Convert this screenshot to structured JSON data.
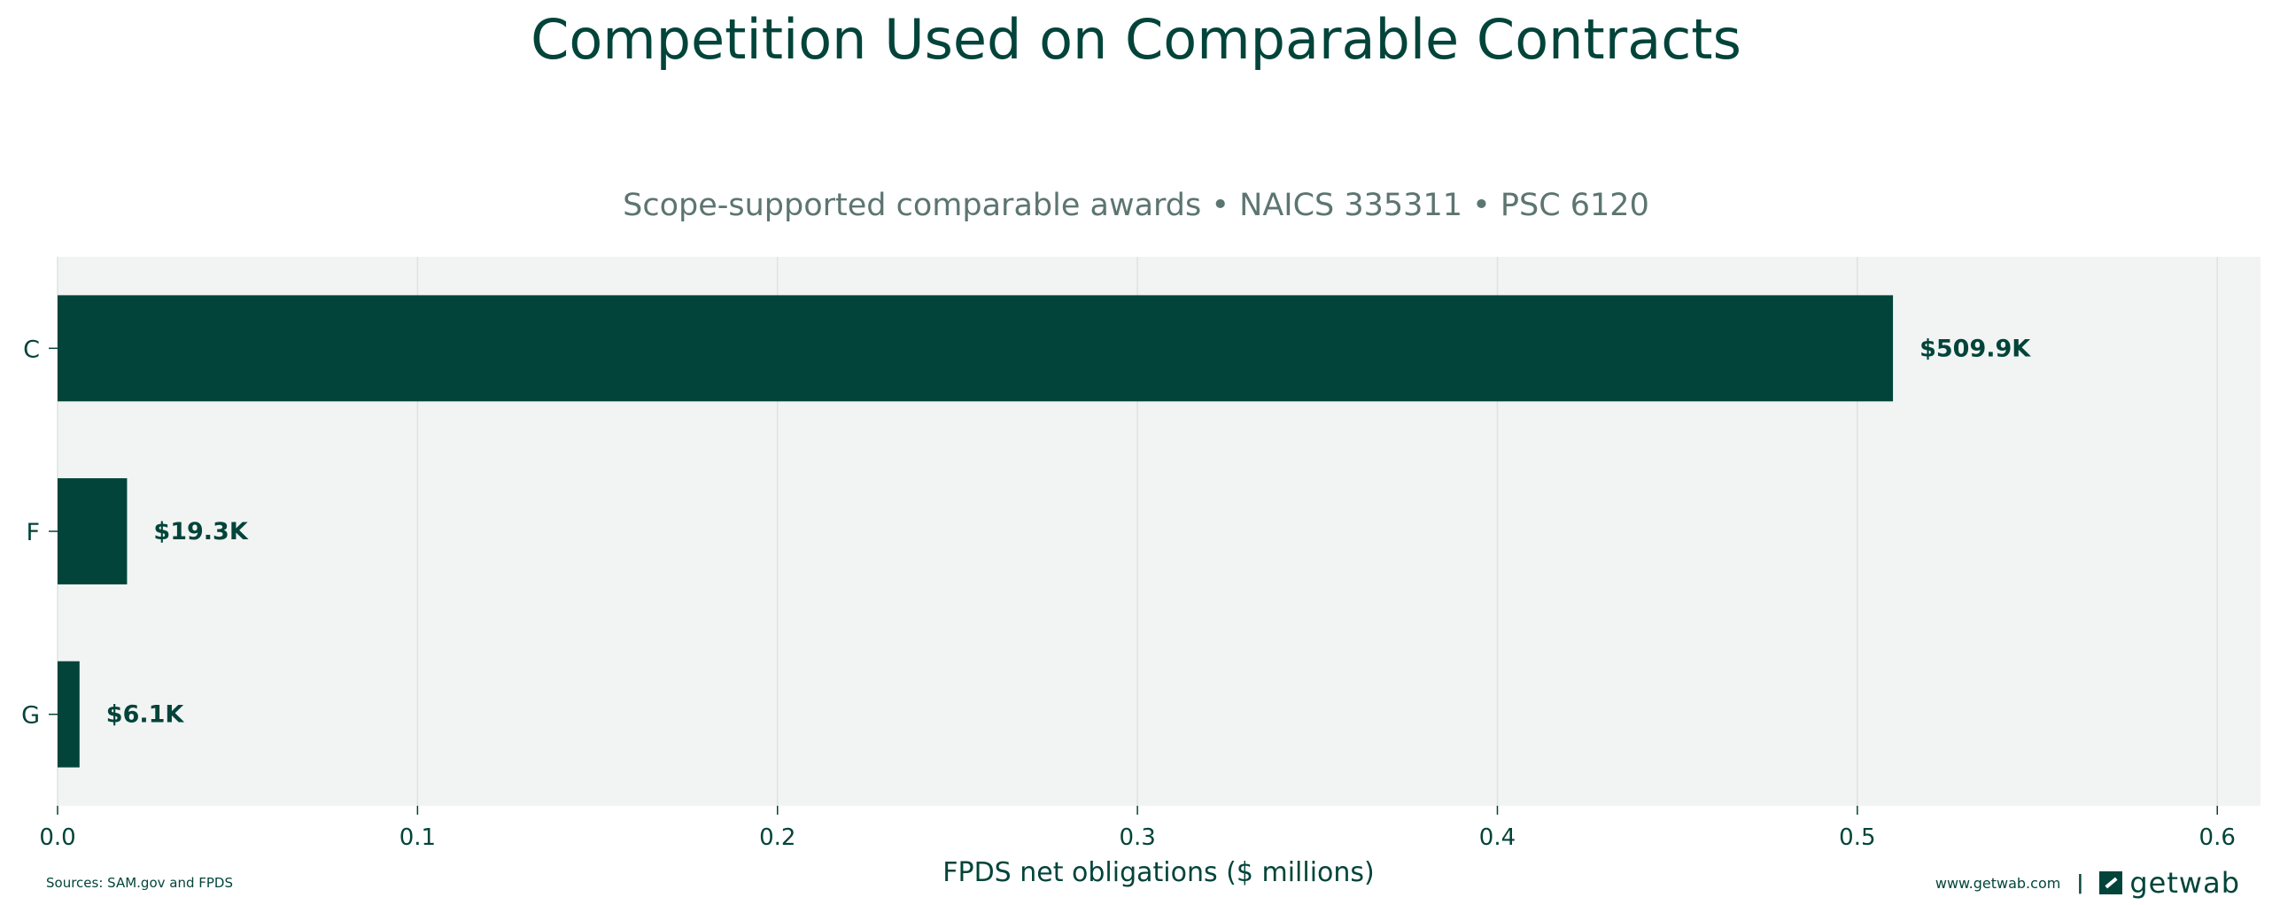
{
  "chart_data": {
    "type": "bar",
    "orientation": "horizontal",
    "title": "Competition Used on Comparable Contracts",
    "subtitle": "Scope-supported comparable awards • NAICS 335311 • PSC 6120",
    "xlabel": "FPDS net obligations ($ millions)",
    "ylabel": "",
    "categories": [
      "C",
      "F",
      "G"
    ],
    "values": [
      0.5099,
      0.0193,
      0.0061
    ],
    "data_labels": [
      "$509.9K",
      "$19.3K",
      "$6.1K"
    ],
    "xlim": [
      0,
      0.612
    ],
    "xticks": [
      0.0,
      0.1,
      0.2,
      0.3,
      0.4,
      0.5,
      0.6
    ],
    "xtick_labels": [
      "0.0",
      "0.1",
      "0.2",
      "0.3",
      "0.4",
      "0.5",
      "0.6"
    ],
    "grid": "vertical",
    "bar_color": "#02443a",
    "plot_background": "#f2f4f3"
  },
  "footer": {
    "sources": "Sources: SAM.gov and FPDS",
    "url": "www.getwab.com",
    "separator": "|",
    "brand": "getwab"
  }
}
